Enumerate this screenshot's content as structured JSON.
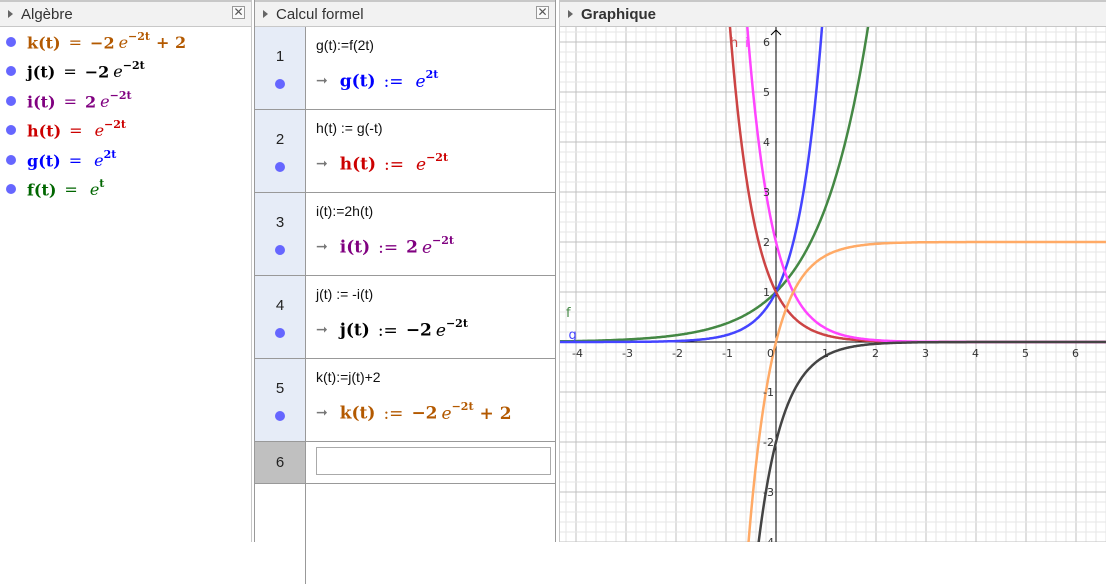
{
  "algebra": {
    "title": "Algèbre",
    "items": [
      {
        "name": "k(t)",
        "op": "=",
        "coef": "−2",
        "base": "e",
        "exp": "−2t",
        "tail": "+ 2",
        "color": "#b35900"
      },
      {
        "name": "j(t)",
        "op": "=",
        "coef": "−2",
        "base": "e",
        "exp": "−2t",
        "tail": "",
        "color": "#000000"
      },
      {
        "name": "i(t)",
        "op": "=",
        "coef": "2",
        "base": "e",
        "exp": "−2t",
        "tail": "",
        "color": "#800080"
      },
      {
        "name": "h(t)",
        "op": "=",
        "coef": "",
        "base": "e",
        "exp": "−2t",
        "tail": "",
        "color": "#cc0000"
      },
      {
        "name": "g(t)",
        "op": "=",
        "coef": "",
        "base": "e",
        "exp": "2t",
        "tail": "",
        "color": "#0000ff"
      },
      {
        "name": "f(t)",
        "op": "=",
        "coef": "",
        "base": "e",
        "exp": "t",
        "tail": "",
        "color": "#006600"
      }
    ]
  },
  "cas": {
    "title": "Calcul formel",
    "rows": [
      {
        "num": "1",
        "input": "g(t):=f(2t)",
        "out": {
          "name": "g(t)",
          "op": ":=",
          "coef": "",
          "base": "e",
          "exp": "2t",
          "tail": "",
          "color": "#0000ff"
        }
      },
      {
        "num": "2",
        "input": "h(t) := g(-t)",
        "out": {
          "name": "h(t)",
          "op": ":=",
          "coef": "",
          "base": "e",
          "exp": "−2t",
          "tail": "",
          "color": "#cc0000"
        }
      },
      {
        "num": "3",
        "input": "i(t):=2h(t)",
        "out": {
          "name": "i(t)",
          "op": ":=",
          "coef": "2",
          "base": "e",
          "exp": "−2t",
          "tail": "",
          "color": "#800080"
        }
      },
      {
        "num": "4",
        "input": "j(t) := -i(t)",
        "out": {
          "name": "j(t)",
          "op": ":=",
          "coef": "−2",
          "base": "e",
          "exp": "−2t",
          "tail": "",
          "color": "#000000"
        }
      },
      {
        "num": "5",
        "input": "k(t):=j(t)+2",
        "out": {
          "name": "k(t)",
          "op": ":=",
          "coef": "−2",
          "base": "e",
          "exp": "−2t",
          "tail": "+ 2",
          "color": "#b35900"
        }
      }
    ],
    "empty_row": {
      "num": "6",
      "input": ""
    }
  },
  "graph": {
    "title": "Graphique",
    "xlim": [
      -4.3,
      6.6
    ],
    "ylim": [
      -4,
      6.3
    ],
    "x_ticks": [
      "-4",
      "-3",
      "-2",
      "-1",
      "0",
      "1",
      "2",
      "3",
      "4",
      "5",
      "6"
    ],
    "y_ticks": [
      "-4",
      "-3",
      "-2",
      "-1",
      "1",
      "2",
      "3",
      "4",
      "5",
      "6"
    ],
    "curves": [
      {
        "name": "f",
        "expr": "e^t",
        "color": "#448844",
        "label": "f"
      },
      {
        "name": "g",
        "expr": "e^(2t)",
        "color": "#4444ff",
        "label": "g"
      },
      {
        "name": "h",
        "expr": "e^(-2t)",
        "color": "#cc4444",
        "label": "h"
      },
      {
        "name": "i",
        "expr": "2e^(-2t)",
        "color": "#ff44ff",
        "label": "i"
      },
      {
        "name": "j",
        "expr": "-2e^(-2t)",
        "color": "#444444",
        "label": ""
      },
      {
        "name": "k",
        "expr": "-2e^(-2t)+2",
        "color": "#ffaa66",
        "label": ""
      }
    ]
  }
}
